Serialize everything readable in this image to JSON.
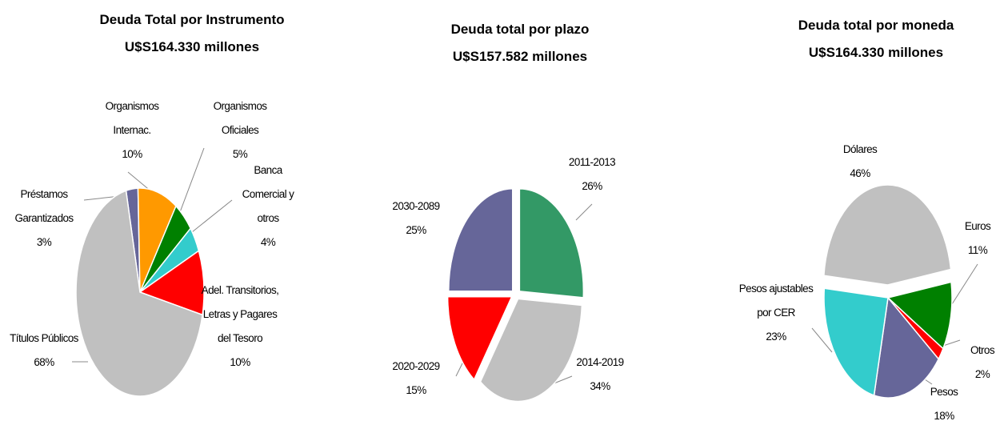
{
  "chart_data": [
    {
      "type": "pie",
      "title": "Deuda Total por Instrumento",
      "subtitle": "U$S164.330 millones",
      "categories": [
        "Préstamos Garantizados",
        "Organismos Internac.",
        "Organismos Oficiales",
        "Banca Comercial y otros",
        "Adel. Transitorios, Letras y Pagares del Tesoro",
        "Títulos Públicos"
      ],
      "values": [
        3,
        10,
        5,
        4,
        10,
        68
      ],
      "value_labels": [
        "3%",
        "10%",
        "5%",
        "4%",
        "10%",
        "68%"
      ],
      "colors": [
        "#666699",
        "#ff9900",
        "#008000",
        "#33cccc",
        "#ff0000",
        "#c0c0c0"
      ]
    },
    {
      "type": "pie",
      "title": "Deuda total por plazo",
      "subtitle": "U$S157.582 millones",
      "categories": [
        "2011-2013",
        "2014-2019",
        "2020-2029",
        "2030-2089"
      ],
      "values": [
        26,
        34,
        15,
        25
      ],
      "value_labels": [
        "26%",
        "34%",
        "15%",
        "25%"
      ],
      "colors": [
        "#339966",
        "#c0c0c0",
        "#ff0000",
        "#666699"
      ]
    },
    {
      "type": "pie",
      "title": "Deuda total por moneda",
      "subtitle": "U$S164.330 millones",
      "categories": [
        "Dólares",
        "Euros",
        "Otros",
        "Pesos",
        "Pesos ajustables por CER"
      ],
      "values": [
        46,
        11,
        2,
        18,
        23
      ],
      "value_labels": [
        "46%",
        "11%",
        "2%",
        "18%",
        "23%"
      ],
      "colors": [
        "#c0c0c0",
        "#008000",
        "#ff0000",
        "#666699",
        "#33cccc"
      ]
    }
  ]
}
